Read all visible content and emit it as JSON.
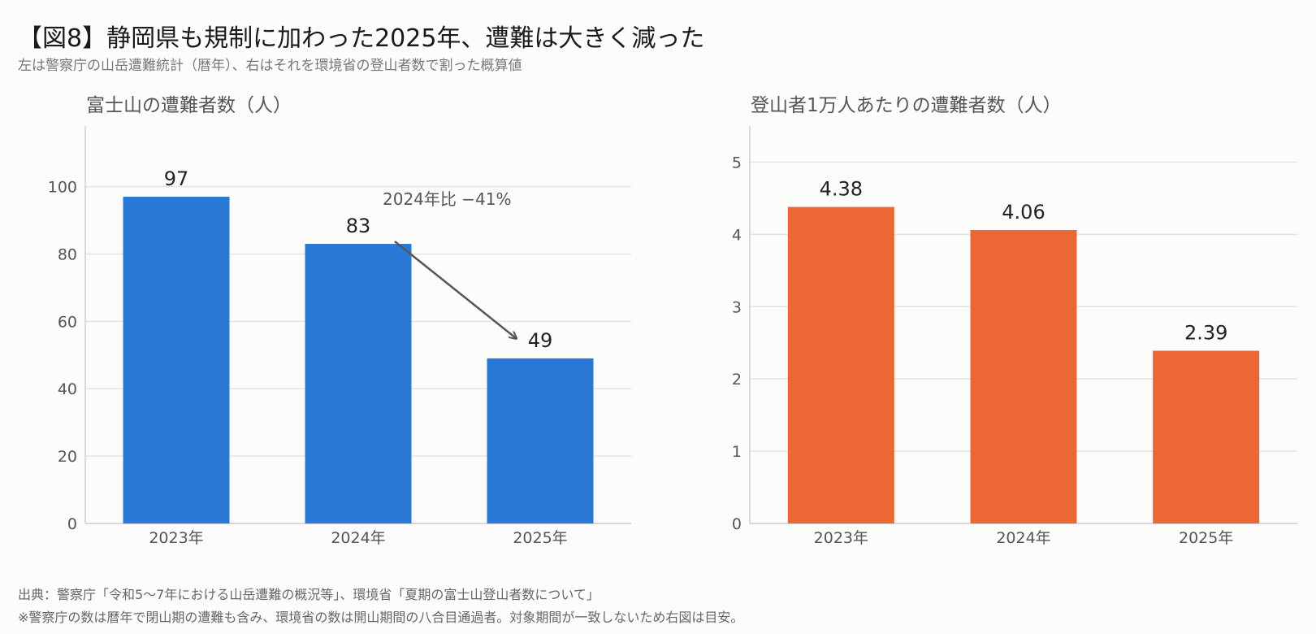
{
  "header": {
    "title": "【図8】静岡県も規制に加わった2025年、遭難は大きく減った",
    "subtitle": "左は警察庁の山岳遭難統計（暦年）、右はそれを環境省の登山者数で割った概算値"
  },
  "footer": {
    "source": "出典：警察庁「令和5〜7年における山岳遭難の概況等」、環境省「夏期の富士山登山者数について」",
    "note": "※警察庁の数は暦年で閉山期の遭難も含み、環境省の数は開山期間の八合目通過者。対象期間が一致しないため右図は目安。"
  },
  "chart_data": [
    {
      "type": "bar",
      "title": "富士山の遭難者数（人）",
      "categories": [
        "2023年",
        "2024年",
        "2025年"
      ],
      "values": [
        97,
        83,
        49
      ],
      "value_labels": [
        "97",
        "83",
        "49"
      ],
      "yticks": [
        "0",
        "20",
        "40",
        "60",
        "80",
        "100"
      ],
      "ylim": [
        0,
        118
      ],
      "color": "#2a78d6",
      "grid": true,
      "annotation": {
        "text": "2024年比 −41%",
        "from": "2024年",
        "to": "2025年"
      }
    },
    {
      "type": "bar",
      "title": "登山者1万人あたりの遭難者数（人）",
      "categories": [
        "2023年",
        "2024年",
        "2025年"
      ],
      "values": [
        4.38,
        4.06,
        2.39
      ],
      "value_labels": [
        "4.38",
        "4.06",
        "2.39"
      ],
      "yticks": [
        "0",
        "1",
        "2",
        "3",
        "4",
        "5"
      ],
      "ylim": [
        0,
        5.5
      ],
      "color": "#eb6834",
      "grid": true
    }
  ]
}
